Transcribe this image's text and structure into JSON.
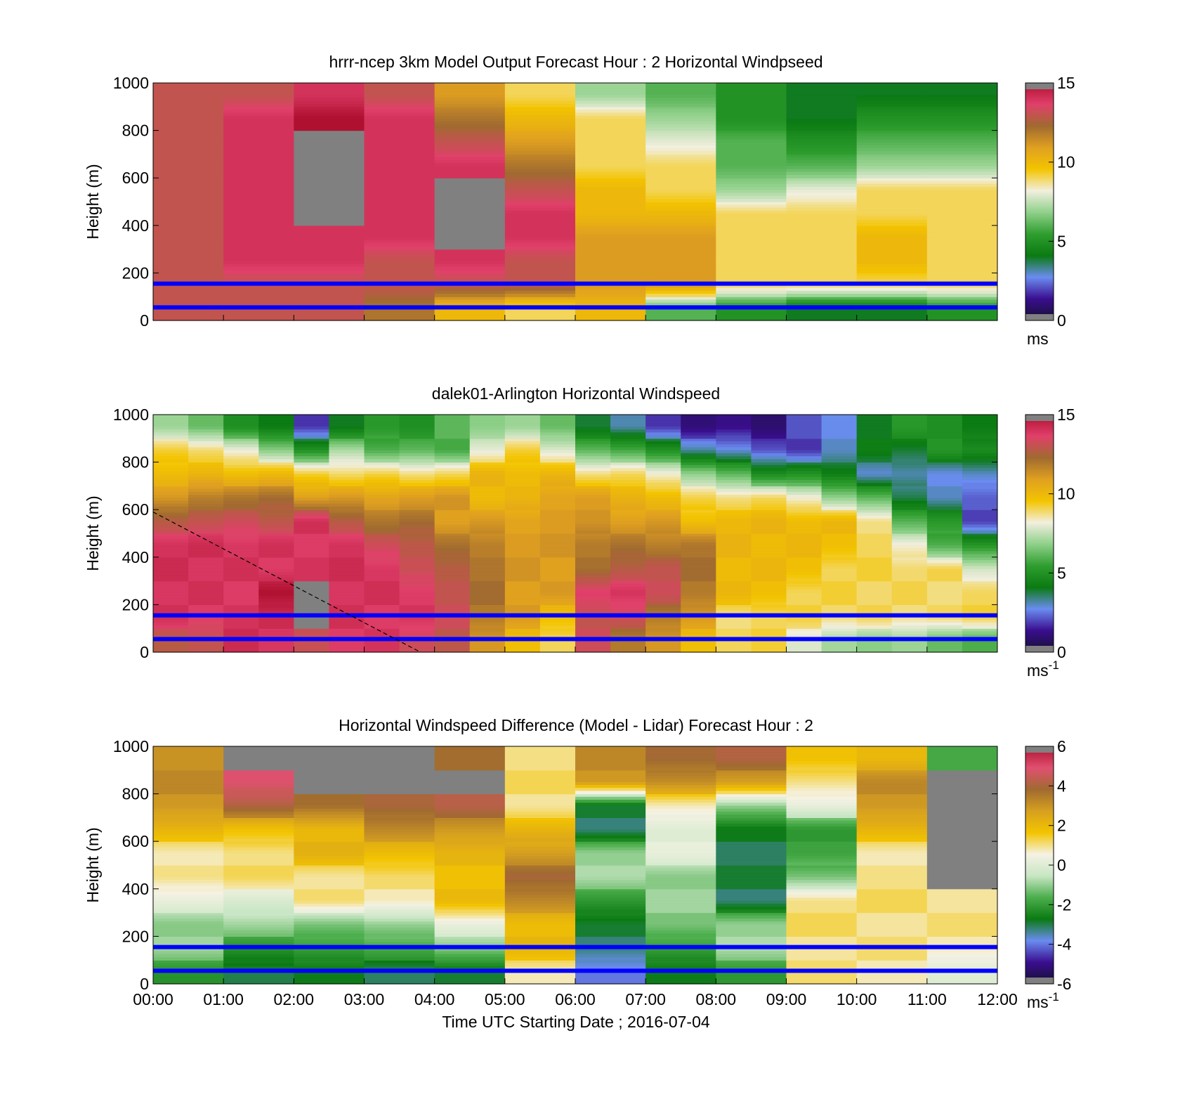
{
  "colors": {
    "line_marker": "#0000ff",
    "missing": "#808080",
    "wind_colormap": [
      "#141030",
      "#3a0e8f",
      "#6a8cf0",
      "#0a7a12",
      "#2f9e2f",
      "#8fd08a",
      "#f2efdf",
      "#f3c400",
      "#e0a020",
      "#a06a30",
      "#e0406a",
      "#b01030"
    ],
    "diff_colormap": [
      "#141030",
      "#3a0e8f",
      "#6a8cf0",
      "#0a7a12",
      "#4cae4c",
      "#c8e6c4",
      "#f5f2e4",
      "#f3c400",
      "#d6a020",
      "#a06a30",
      "#e05070",
      "#b01030"
    ]
  },
  "chart_data": [
    {
      "type": "heatmap",
      "title": "hrrr-ncep 3km Model Output   Forecast Hour : 2 Horizontal Windpseed",
      "xlabel": "",
      "ylabel": "Height (m)",
      "xlim": [
        0,
        12
      ],
      "ylim": [
        0,
        1000
      ],
      "yticks": [
        "0",
        "200",
        "400",
        "600",
        "800",
        "1000"
      ],
      "colorbar": {
        "min": 0,
        "max": 15,
        "ticks": [
          "0",
          "5",
          "10",
          "15"
        ],
        "unit": "ms",
        "unit_sup": ""
      },
      "reference_lines_m": [
        55,
        155
      ],
      "dashed_line": null,
      "x_hours": [
        0,
        1,
        2,
        3,
        4,
        5,
        6,
        7,
        8,
        9,
        10,
        11
      ],
      "heights": [
        50,
        150,
        250,
        350,
        450,
        550,
        650,
        750,
        850,
        950
      ],
      "z": [
        [
          13,
          13,
          13,
          12,
          10,
          9,
          10,
          6,
          5,
          4,
          4,
          5
        ],
        [
          13,
          13,
          13,
          13,
          13,
          13,
          11,
          11,
          9,
          9,
          9,
          9
        ],
        [
          13,
          14,
          14,
          13,
          14,
          13,
          11,
          11,
          9,
          9,
          10,
          9
        ],
        [
          13,
          14,
          14,
          14,
          null,
          14,
          11,
          11,
          9,
          9,
          10,
          9
        ],
        [
          13,
          14,
          null,
          14,
          null,
          14,
          10,
          10,
          9,
          9,
          9,
          9
        ],
        [
          13,
          14,
          null,
          14,
          null,
          13,
          10,
          9,
          7,
          8,
          9,
          9
        ],
        [
          13,
          14,
          null,
          14,
          14,
          12,
          9,
          9,
          6,
          6,
          7,
          7
        ],
        [
          13,
          14,
          null,
          14,
          13,
          11,
          9,
          8,
          6,
          5,
          6,
          6
        ],
        [
          13,
          14,
          15,
          14,
          12,
          10,
          9,
          7,
          5,
          4,
          5,
          5
        ],
        [
          13,
          13,
          14,
          13,
          11,
          9,
          7,
          6,
          5,
          4,
          4,
          4
        ]
      ]
    },
    {
      "type": "heatmap",
      "title": "dalek01-Arlington  Horizontal Windspeed",
      "xlabel": "",
      "ylabel": "Height (m)",
      "xlim": [
        0,
        12
      ],
      "ylim": [
        0,
        1000
      ],
      "yticks": [
        "0",
        "200",
        "400",
        "600",
        "800",
        "1000"
      ],
      "colorbar": {
        "min": 0,
        "max": 15,
        "ticks": [
          "0",
          "5",
          "10",
          "15"
        ],
        "unit": "ms",
        "unit_sup": "-1"
      },
      "reference_lines_m": [
        55,
        155
      ],
      "dashed_line": {
        "x": [
          0,
          3.8
        ],
        "y": [
          590,
          0
        ]
      },
      "x_hours": [
        0,
        0.5,
        1,
        1.5,
        2,
        2.5,
        3,
        3.5,
        4,
        4.5,
        5,
        5.5,
        6,
        6.5,
        7,
        7.5,
        8,
        8.5,
        9,
        9.5,
        10,
        10.5,
        11,
        11.5
      ],
      "heights": [
        50,
        150,
        250,
        350,
        450,
        550,
        650,
        750,
        850,
        950
      ],
      "z": [
        [
          13,
          13,
          14,
          14,
          13,
          14,
          14,
          13,
          13,
          11,
          10,
          9,
          13,
          12,
          11,
          10,
          9,
          9,
          8,
          7,
          7,
          7,
          6,
          6
        ],
        [
          14,
          14,
          14,
          14,
          null,
          14,
          14,
          14,
          13,
          12,
          11,
          10,
          13,
          13,
          12,
          11,
          9,
          9,
          9,
          9,
          9,
          9,
          9,
          9
        ],
        [
          14,
          14,
          14,
          15,
          null,
          14,
          14,
          14,
          13,
          12,
          11,
          11,
          14,
          14,
          13,
          12,
          10,
          10,
          9,
          9,
          9,
          9,
          9,
          9
        ],
        [
          14,
          14,
          14,
          14,
          14,
          14,
          14,
          13,
          13,
          12,
          11,
          11,
          12,
          13,
          13,
          12,
          10,
          10,
          10,
          9,
          9,
          9,
          9,
          8
        ],
        [
          14,
          14,
          14,
          14,
          14,
          14,
          13,
          13,
          12,
          12,
          11,
          11,
          12,
          12,
          12,
          12,
          10,
          10,
          10,
          10,
          9,
          8,
          6,
          5
        ],
        [
          13,
          13,
          13,
          13,
          14,
          13,
          12,
          12,
          11,
          11,
          11,
          11,
          11,
          11,
          11,
          10,
          10,
          10,
          10,
          10,
          9,
          6,
          5,
          2
        ],
        [
          11,
          12,
          12,
          12,
          11,
          11,
          11,
          11,
          11,
          10,
          10,
          11,
          11,
          10,
          10,
          9,
          9,
          9,
          8,
          7,
          6,
          4,
          3,
          2
        ],
        [
          10,
          10,
          10,
          10,
          9,
          9,
          9,
          9,
          9,
          10,
          10,
          10,
          9,
          9,
          8,
          7,
          6,
          5,
          5,
          4,
          3,
          3,
          3,
          3
        ],
        [
          9,
          9,
          8,
          7,
          5,
          7,
          6,
          6,
          6,
          8,
          9,
          8,
          6,
          6,
          5,
          3,
          3,
          2,
          2,
          3,
          4,
          4,
          5,
          5
        ],
        [
          7,
          6,
          5,
          4,
          2,
          4,
          5,
          5,
          6,
          7,
          7,
          6,
          4,
          3,
          2,
          1,
          1,
          1,
          2,
          3,
          4,
          5,
          5,
          4
        ]
      ]
    },
    {
      "type": "heatmap",
      "title": "Horizontal Windspeed Difference (Model - Lidar) Forecast Hour : 2",
      "xlabel": "Time UTC  Starting Date ; 2016-07-04",
      "ylabel": "Height (m)",
      "xlim": [
        0,
        12
      ],
      "ylim": [
        0,
        1000
      ],
      "xticks": [
        "00:00",
        "01:00",
        "02:00",
        "03:00",
        "04:00",
        "05:00",
        "06:00",
        "07:00",
        "08:00",
        "09:00",
        "10:00",
        "11:00",
        "12:00"
      ],
      "yticks": [
        "0",
        "200",
        "400",
        "600",
        "800",
        "1000"
      ],
      "colorbar": {
        "min": -6,
        "max": 6,
        "ticks": [
          "-6",
          "-4",
          "-2",
          "0",
          "2",
          "4",
          "6"
        ],
        "unit": "ms",
        "unit_sup": "-1"
      },
      "reference_lines_m": [
        55,
        155
      ],
      "dashed_line": null,
      "x_hours": [
        0,
        1,
        2,
        3,
        4,
        5,
        6,
        7,
        8,
        9,
        10,
        11
      ],
      "heights": [
        50,
        150,
        250,
        350,
        450,
        550,
        650,
        750,
        850,
        950
      ],
      "z": [
        [
          -2,
          -3,
          -3,
          -3,
          -3,
          1,
          -4,
          -3,
          -2,
          1,
          1,
          0
        ],
        [
          -1,
          -2,
          -2,
          -2,
          -1,
          2,
          -3,
          -2,
          -1,
          1,
          1,
          1
        ],
        [
          -1,
          -1,
          -1,
          -1,
          0,
          2,
          -3,
          -1,
          -1,
          1,
          1,
          1
        ],
        [
          0,
          0,
          1,
          1,
          2,
          3,
          -2,
          -1,
          -3,
          1,
          1,
          1
        ],
        [
          1,
          1,
          1,
          1,
          2,
          4,
          -1,
          -1,
          -3,
          -1,
          1,
          null
        ],
        [
          1,
          1,
          2,
          2,
          2,
          3,
          -1,
          0,
          -3,
          -2,
          1,
          null
        ],
        [
          2,
          2,
          2,
          3,
          3,
          2,
          -3,
          0,
          -3,
          -2,
          2,
          null
        ],
        [
          3,
          4,
          4,
          4,
          4,
          1,
          -3,
          1,
          -1,
          0,
          3,
          null
        ],
        [
          3,
          5,
          null,
          null,
          null,
          1,
          3,
          3,
          3,
          1,
          3,
          null
        ],
        [
          3,
          null,
          null,
          null,
          4,
          1,
          3,
          4,
          4,
          2,
          2,
          -2
        ]
      ]
    }
  ]
}
